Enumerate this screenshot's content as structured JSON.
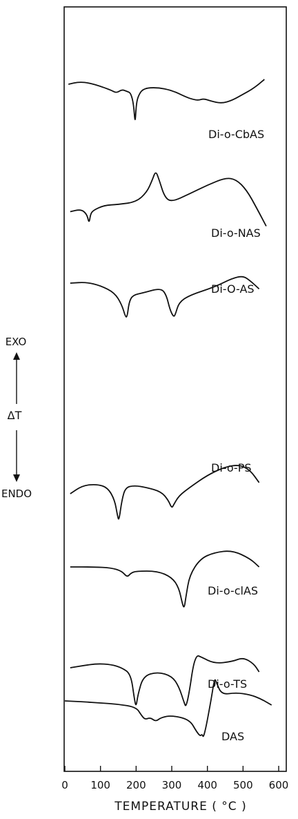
{
  "chart_data": {
    "type": "line",
    "title": "",
    "xlabel": "TEMPERATURE ( °C )",
    "ylabel": "ΔT",
    "y_direction_labels": {
      "up": "EXO",
      "down": "ENDO"
    },
    "xlim": [
      0,
      600
    ],
    "xticks": [
      0,
      100,
      200,
      300,
      400,
      500,
      600
    ],
    "grid": false,
    "y_values_note": "relative ΔT deflection (arbitrary units, up = exothermic)",
    "series": [
      {
        "name": "Di-o-CbAS",
        "x": [
          10,
          40,
          70,
          100,
          130,
          145,
          160,
          175,
          185,
          193,
          197,
          200,
          205,
          220,
          260,
          300,
          340,
          360,
          375,
          390,
          410,
          440,
          470,
          500,
          530,
          560
        ],
        "y": [
          0,
          6,
          3,
          -5,
          -15,
          -22,
          -13,
          -18,
          -22,
          -50,
          -100,
          -55,
          -30,
          -10,
          -8,
          -15,
          -32,
          -38,
          -40,
          -36,
          -42,
          -48,
          -40,
          -25,
          -10,
          12
        ]
      },
      {
        "name": "Di-o-NAS",
        "x": [
          15,
          45,
          62,
          68,
          72,
          80,
          110,
          150,
          200,
          230,
          245,
          255,
          265,
          280,
          300,
          350,
          400,
          450,
          480,
          510,
          540,
          565
        ],
        "y": [
          -55,
          -50,
          -60,
          -80,
          -60,
          -52,
          -42,
          -40,
          -35,
          -15,
          10,
          30,
          10,
          -25,
          -35,
          -18,
          0,
          15,
          12,
          -10,
          -50,
          -85
        ]
      },
      {
        "name": "Di-O-AS",
        "x": [
          15,
          60,
          100,
          140,
          160,
          170,
          175,
          180,
          190,
          220,
          270,
          285,
          295,
          305,
          310,
          320,
          350,
          420,
          470,
          500,
          520,
          545
        ],
        "y": [
          0,
          2,
          -5,
          -20,
          -45,
          -70,
          -70,
          -40,
          -25,
          -20,
          -10,
          -25,
          -55,
          -70,
          -65,
          -40,
          -25,
          -8,
          10,
          15,
          5,
          -12
        ]
      },
      {
        "name": "Di-o-PS",
        "x": [
          15,
          50,
          90,
          120,
          140,
          148,
          152,
          160,
          170,
          195,
          230,
          270,
          290,
          300,
          305,
          320,
          350,
          400,
          450,
          490,
          520,
          545
        ],
        "y": [
          -45,
          -25,
          -22,
          -30,
          -60,
          -100,
          -110,
          -60,
          -30,
          -25,
          -30,
          -40,
          -60,
          -80,
          -72,
          -50,
          -30,
          0,
          20,
          25,
          12,
          -18
        ]
      },
      {
        "name": "Di-o-clAS",
        "x": [
          15,
          80,
          130,
          160,
          175,
          185,
          200,
          260,
          300,
          320,
          330,
          335,
          340,
          350,
          380,
          420,
          470,
          520,
          545
        ],
        "y": [
          0,
          0,
          -2,
          -10,
          -25,
          -15,
          -10,
          -10,
          -25,
          -50,
          -90,
          -100,
          -70,
          -20,
          20,
          35,
          40,
          20,
          0
        ]
      },
      {
        "name": "Di-o-TS",
        "x": [
          15,
          50,
          90,
          130,
          160,
          185,
          195,
          200,
          205,
          220,
          260,
          300,
          320,
          335,
          340,
          350,
          360,
          370,
          380,
          420,
          470,
          500,
          530,
          545
        ],
        "y": [
          -5,
          0,
          5,
          3,
          -5,
          -20,
          -80,
          -100,
          -70,
          -25,
          -15,
          -25,
          -50,
          -90,
          -100,
          -60,
          0,
          25,
          22,
          5,
          10,
          20,
          5,
          -15
        ]
      },
      {
        "name": "DAS",
        "x": [
          0,
          50,
          100,
          150,
          200,
          215,
          225,
          240,
          255,
          270,
          300,
          350,
          370,
          380,
          385,
          390,
          410,
          420,
          425,
          440,
          480,
          520,
          550,
          580
        ],
        "y": [
          0,
          -2,
          -5,
          -8,
          -15,
          -35,
          -45,
          -40,
          -50,
          -40,
          -35,
          -45,
          -75,
          -85,
          -80,
          -90,
          0,
          55,
          45,
          15,
          20,
          15,
          5,
          -10
        ]
      }
    ]
  }
}
